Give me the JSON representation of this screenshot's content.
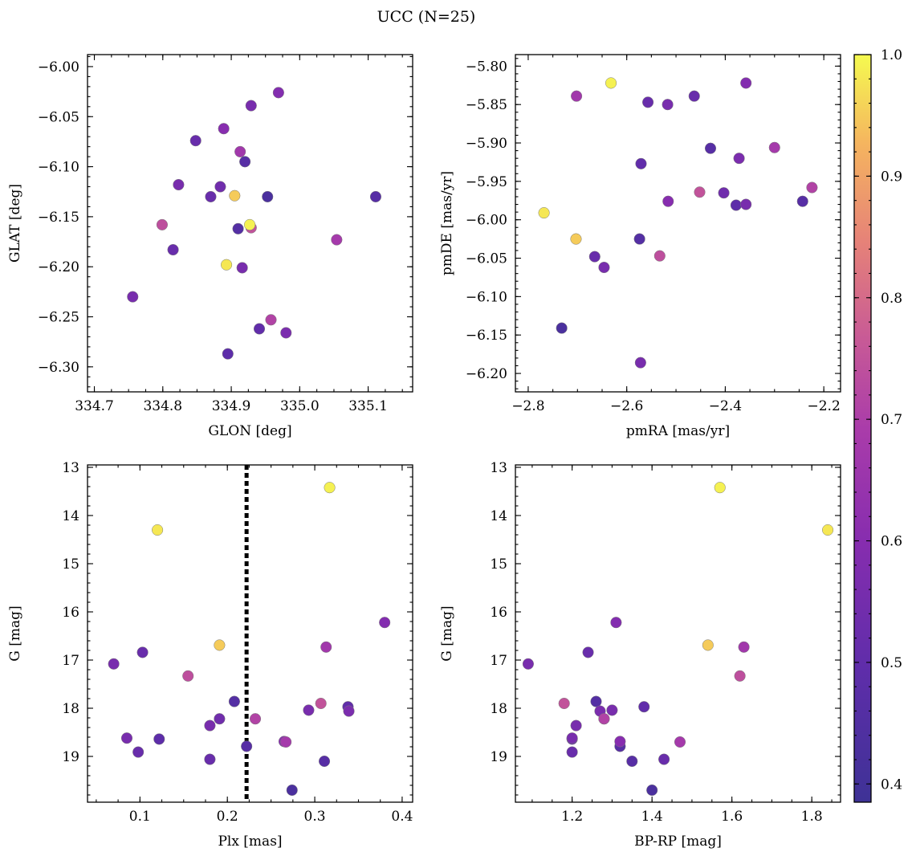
{
  "chart_data": {
    "title": "UCC (N=25)",
    "type": "scatter",
    "colormap": "plasma",
    "colorbar": {
      "range": [
        0.385,
        1.0
      ],
      "ticks": [
        0.4,
        0.5,
        0.6,
        0.7,
        0.8,
        0.9,
        1.0
      ],
      "tick_labels": [
        "0.4",
        "0.5",
        "0.6",
        "0.7",
        "0.8",
        "0.9",
        "1.0"
      ]
    },
    "stars": [
      {
        "glon": 334.756,
        "glat": -6.23,
        "pmra": -2.572,
        "pmde": -6.186,
        "plx": 0.07,
        "g": 17.08,
        "bprp": 1.09,
        "p": 0.56
      },
      {
        "glon": 334.799,
        "glat": -6.158,
        "pmra": -2.533,
        "pmde": -6.047,
        "plx": 0.155,
        "g": 17.33,
        "bprp": 1.62,
        "p": 0.74
      },
      {
        "glon": 334.815,
        "glat": -6.183,
        "pmra": -2.665,
        "pmde": -6.048,
        "plx": 0.103,
        "g": 16.84,
        "bprp": 1.24,
        "p": 0.52
      },
      {
        "glon": 334.823,
        "glat": -6.118,
        "pmra": -2.517,
        "pmde": -5.85,
        "plx": 0.085,
        "g": 18.62,
        "bprp": 1.2,
        "p": 0.56
      },
      {
        "glon": 334.848,
        "glat": -6.074,
        "pmra": -2.557,
        "pmde": -5.847,
        "plx": 0.098,
        "g": 18.91,
        "bprp": 1.2,
        "p": 0.52
      },
      {
        "glon": 334.87,
        "glat": -6.13,
        "pmra": -2.463,
        "pmde": -5.839,
        "plx": 0.18,
        "g": 19.06,
        "bprp": 1.43,
        "p": 0.52
      },
      {
        "glon": 334.884,
        "glat": -6.12,
        "pmra": -2.403,
        "pmde": -5.965,
        "plx": 0.191,
        "g": 18.22,
        "bprp": 1.28,
        "p": 0.54
      },
      {
        "glon": 334.889,
        "glat": -6.062,
        "pmra": -2.516,
        "pmde": -5.976,
        "plx": 0.265,
        "g": 18.69,
        "bprp": 1.32,
        "p": 0.6
      },
      {
        "glon": 334.893,
        "glat": -6.198,
        "pmra": -2.768,
        "pmde": -5.991,
        "plx": 0.12,
        "g": 14.3,
        "bprp": 1.84,
        "p": 0.98
      },
      {
        "glon": 334.895,
        "glat": -6.287,
        "pmra": -2.378,
        "pmde": -5.981,
        "plx": 0.122,
        "g": 18.64,
        "bprp": 1.2,
        "p": 0.49
      },
      {
        "glon": 334.905,
        "glat": -6.129,
        "pmra": -2.703,
        "pmde": -6.025,
        "plx": 0.191,
        "g": 16.69,
        "bprp": 1.54,
        "p": 0.95
      },
      {
        "glon": 334.91,
        "glat": -6.162,
        "pmra": -2.574,
        "pmde": -6.025,
        "plx": 0.208,
        "g": 17.86,
        "bprp": 1.26,
        "p": 0.46
      },
      {
        "glon": 334.913,
        "glat": -6.085,
        "pmra": -2.702,
        "pmde": -5.839,
        "plx": 0.313,
        "g": 16.73,
        "bprp": 1.63,
        "p": 0.67
      },
      {
        "glon": 334.916,
        "glat": -6.201,
        "pmra": -2.646,
        "pmde": -6.062,
        "plx": 0.18,
        "g": 18.36,
        "bprp": 1.21,
        "p": 0.56
      },
      {
        "glon": 334.92,
        "glat": -6.095,
        "pmra": -2.43,
        "pmde": -5.907,
        "plx": 0.222,
        "g": 18.79,
        "bprp": 1.32,
        "p": 0.47
      },
      {
        "glon": 334.927,
        "glat": -6.158,
        "pmra": -2.632,
        "pmde": -5.822,
        "plx": 0.317,
        "g": 13.42,
        "bprp": 1.57,
        "p": 0.99
      },
      {
        "glon": 334.929,
        "glat": -6.161,
        "pmra": -2.452,
        "pmde": -5.964,
        "plx": 0.307,
        "g": 17.9,
        "bprp": 1.18,
        "p": 0.75
      },
      {
        "glon": 334.929,
        "glat": -6.039,
        "pmra": -2.358,
        "pmde": -5.98,
        "plx": 0.293,
        "g": 18.04,
        "bprp": 1.3,
        "p": 0.56
      },
      {
        "glon": 334.941,
        "glat": -6.262,
        "pmra": -2.571,
        "pmde": -5.927,
        "plx": 0.338,
        "g": 17.97,
        "bprp": 1.38,
        "p": 0.5
      },
      {
        "glon": 334.953,
        "glat": -6.13,
        "pmra": -2.732,
        "pmde": -6.141,
        "plx": 0.274,
        "g": 19.7,
        "bprp": 1.4,
        "p": 0.43
      },
      {
        "glon": 334.958,
        "glat": -6.253,
        "pmra": -2.224,
        "pmde": -5.958,
        "plx": 0.232,
        "g": 18.22,
        "bprp": 1.28,
        "p": 0.71
      },
      {
        "glon": 334.969,
        "glat": -6.026,
        "pmra": -2.358,
        "pmde": -5.822,
        "plx": 0.38,
        "g": 16.22,
        "bprp": 1.31,
        "p": 0.59
      },
      {
        "glon": 334.98,
        "glat": -6.266,
        "pmra": -2.372,
        "pmde": -5.92,
        "plx": 0.339,
        "g": 18.06,
        "bprp": 1.27,
        "p": 0.57
      },
      {
        "glon": 335.054,
        "glat": -6.173,
        "pmra": -2.3,
        "pmde": -5.906,
        "plx": 0.267,
        "g": 18.7,
        "bprp": 1.47,
        "p": 0.68
      },
      {
        "glon": 335.111,
        "glat": -6.13,
        "pmra": -2.243,
        "pmde": -5.976,
        "plx": 0.311,
        "g": 19.1,
        "bprp": 1.35,
        "p": 0.47
      }
    ],
    "panels": [
      {
        "id": "glon-glat",
        "x_field": "glon",
        "y_field": "glat",
        "xlabel": "GLON [deg]",
        "ylabel": "GLAT [deg]",
        "xlim": [
          334.69,
          335.165
        ],
        "ylim": [
          -6.325,
          -5.988
        ],
        "y_inverted": false,
        "xticks": [
          334.7,
          334.8,
          334.9,
          335.0,
          335.1
        ],
        "xtick_labels": [
          "334.7",
          "334.8",
          "334.9",
          "335.0",
          "335.1"
        ],
        "yticks": [
          -6.0,
          -6.05,
          -6.1,
          -6.15,
          -6.2,
          -6.25,
          -6.3
        ],
        "ytick_labels": [
          "−6.00",
          "−6.05",
          "−6.10",
          "−6.15",
          "−6.20",
          "−6.25",
          "−6.30"
        ]
      },
      {
        "id": "pmra-pmde",
        "x_field": "pmra",
        "y_field": "pmde",
        "xlabel": "pmRA [mas/yr]",
        "ylabel": "pmDE [mas/yr]",
        "xlim": [
          -2.826,
          -2.166
        ],
        "ylim": [
          -6.224,
          -5.785
        ],
        "y_inverted": false,
        "xticks": [
          -2.8,
          -2.6,
          -2.4,
          -2.2
        ],
        "xtick_labels": [
          "−2.8",
          "−2.6",
          "−2.4",
          "−2.2"
        ],
        "yticks": [
          -5.8,
          -5.85,
          -5.9,
          -5.95,
          -6.0,
          -6.05,
          -6.1,
          -6.15,
          -6.2
        ],
        "ytick_labels": [
          "−5.80",
          "−5.85",
          "−5.90",
          "−5.95",
          "−6.00",
          "−6.05",
          "−6.10",
          "−6.15",
          "−6.20"
        ]
      },
      {
        "id": "plx-g",
        "x_field": "plx",
        "y_field": "g",
        "xlabel": "Plx [mas]",
        "ylabel": "G [mag]",
        "xlim": [
          0.04,
          0.412
        ],
        "ylim": [
          12.95,
          19.95
        ],
        "y_inverted": true,
        "vline": 0.222,
        "xticks": [
          0.1,
          0.2,
          0.3,
          0.4
        ],
        "xtick_labels": [
          "0.1",
          "0.2",
          "0.3",
          "0.4"
        ],
        "yticks": [
          13,
          14,
          15,
          16,
          17,
          18,
          19
        ],
        "ytick_labels": [
          "13",
          "14",
          "15",
          "16",
          "17",
          "18",
          "19"
        ]
      },
      {
        "id": "bprp-g",
        "x_field": "bprp",
        "y_field": "g",
        "xlabel": "BP-RP [mag]",
        "ylabel": "G [mag]",
        "xlim": [
          1.058,
          1.872
        ],
        "ylim": [
          12.95,
          19.95
        ],
        "y_inverted": true,
        "xticks": [
          1.2,
          1.4,
          1.6,
          1.8
        ],
        "xtick_labels": [
          "1.2",
          "1.4",
          "1.6",
          "1.8"
        ],
        "yticks": [
          13,
          14,
          15,
          16,
          17,
          18,
          19
        ],
        "ytick_labels": [
          "13",
          "14",
          "15",
          "16",
          "17",
          "18",
          "19"
        ]
      }
    ]
  }
}
